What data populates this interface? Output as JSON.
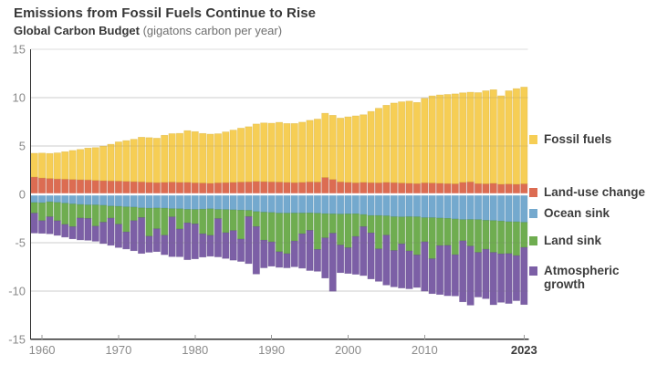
{
  "header": {
    "title": "Emissions from Fossil Fuels Continue to Rise",
    "subtitle_bold": "Global Carbon Budget",
    "subtitle_units": "(gigatons carbon per year)"
  },
  "colors": {
    "background": "#ffffff",
    "axis": "#2f2f2f",
    "grid": "#dedede",
    "grid_overlay": "rgba(110,110,110,0.16)",
    "tick": "#9a9a9a",
    "axis_label": "#8a8a8a",
    "axis_label_bold": "#3a3a3a",
    "zero_line": "#ffffff"
  },
  "legend": {
    "items": [
      {
        "label": "Fossil fuels",
        "lines": "Fossil fuels",
        "color": "#F6CE55"
      },
      {
        "label": "Land-use change",
        "lines": "Land-use change",
        "color": "#DC6C52"
      },
      {
        "label": "Ocean sink",
        "lines": "Ocean sink",
        "color": "#74A9CE"
      },
      {
        "label": "Land sink",
        "lines": "Land sink",
        "color": "#6FAD50"
      },
      {
        "label": "Atmospheric growth",
        "lines": "Atmospheric\ngrowth",
        "color": "#7C5FA6"
      }
    ]
  },
  "y_axis": {
    "ticks": [
      {
        "label": "15",
        "value": 15
      },
      {
        "label": "10",
        "value": 10
      },
      {
        "label": "5",
        "value": 5
      },
      {
        "label": "0",
        "value": 0
      },
      {
        "label": "-5",
        "value": -5
      },
      {
        "label": "-10",
        "value": -10
      },
      {
        "label": "-15",
        "value": -15
      }
    ]
  },
  "x_axis": {
    "ticks": [
      {
        "label": "1960",
        "year": 1960,
        "bold": false
      },
      {
        "label": "1970",
        "year": 1970,
        "bold": false
      },
      {
        "label": "1980",
        "year": 1980,
        "bold": false
      },
      {
        "label": "1990",
        "year": 1990,
        "bold": false
      },
      {
        "label": "2000",
        "year": 2000,
        "bold": false
      },
      {
        "label": "2010",
        "year": 2010,
        "bold": false
      },
      {
        "label": "2023",
        "year": 2023,
        "bold": true
      }
    ]
  },
  "chart_data": {
    "type": "bar",
    "subtype": "stacked-diverging",
    "title": "Emissions from Fossil Fuels Continue to Rise",
    "subtitle": "Global Carbon Budget (gigatons carbon per year)",
    "units": "gigatons carbon per year",
    "ylim": [
      -15,
      15
    ],
    "ytick_interval": 5,
    "grid": true,
    "legend_position": "right",
    "note": "Sources plotted upward, sinks plotted downward; sink values stored as positive magnitudes with direction -1.",
    "years": [
      1959,
      1960,
      1961,
      1962,
      1963,
      1964,
      1965,
      1966,
      1967,
      1968,
      1969,
      1970,
      1971,
      1972,
      1973,
      1974,
      1975,
      1976,
      1977,
      1978,
      1979,
      1980,
      1981,
      1982,
      1983,
      1984,
      1985,
      1986,
      1987,
      1988,
      1989,
      1990,
      1991,
      1992,
      1993,
      1994,
      1995,
      1996,
      1997,
      1998,
      1999,
      2000,
      2001,
      2002,
      2003,
      2004,
      2005,
      2006,
      2007,
      2008,
      2009,
      2010,
      2011,
      2012,
      2013,
      2014,
      2015,
      2016,
      2017,
      2018,
      2019,
      2020,
      2021,
      2022,
      2023
    ],
    "series": [
      {
        "name": "Land-use change",
        "color": "#DC6C52",
        "edge": "#bd5943",
        "direction": 1,
        "values": [
          1.8,
          1.7,
          1.65,
          1.6,
          1.58,
          1.55,
          1.52,
          1.5,
          1.45,
          1.42,
          1.4,
          1.38,
          1.35,
          1.32,
          1.3,
          1.25,
          1.22,
          1.25,
          1.28,
          1.25,
          1.25,
          1.2,
          1.18,
          1.15,
          1.2,
          1.22,
          1.25,
          1.28,
          1.3,
          1.35,
          1.32,
          1.3,
          1.28,
          1.25,
          1.22,
          1.25,
          1.3,
          1.28,
          1.75,
          1.55,
          1.3,
          1.25,
          1.2,
          1.25,
          1.22,
          1.2,
          1.25,
          1.22,
          1.18,
          1.15,
          1.12,
          1.2,
          1.18,
          1.15,
          1.12,
          1.1,
          1.25,
          1.3,
          1.12,
          1.1,
          1.15,
          1.05,
          1.08,
          1.05,
          1.1
        ]
      },
      {
        "name": "Fossil fuels",
        "color": "#F6CE55",
        "edge": "#d8b23a",
        "direction": 1,
        "values": [
          2.45,
          2.57,
          2.58,
          2.69,
          2.83,
          2.99,
          3.13,
          3.29,
          3.39,
          3.57,
          3.78,
          4.05,
          4.21,
          4.38,
          4.61,
          4.62,
          4.59,
          4.86,
          5.0,
          5.06,
          5.34,
          5.29,
          5.12,
          5.08,
          5.07,
          5.24,
          5.4,
          5.57,
          5.7,
          5.93,
          6.07,
          6.06,
          6.17,
          6.08,
          6.11,
          6.22,
          6.36,
          6.51,
          6.64,
          6.63,
          6.59,
          6.77,
          6.92,
          6.99,
          7.36,
          7.71,
          7.97,
          8.23,
          8.4,
          8.5,
          8.39,
          8.74,
          9.01,
          9.14,
          9.22,
          9.3,
          9.26,
          9.27,
          9.41,
          9.62,
          9.68,
          9.15,
          9.64,
          9.89,
          10.0
        ]
      },
      {
        "name": "Ocean sink",
        "color": "#74A9CE",
        "edge": "#5690ba",
        "direction": -1,
        "values": [
          0.85,
          0.88,
          0.78,
          0.84,
          0.92,
          1.0,
          1.06,
          1.1,
          1.1,
          1.14,
          1.22,
          1.25,
          1.3,
          1.33,
          1.41,
          1.44,
          1.42,
          1.44,
          1.49,
          1.5,
          1.56,
          1.57,
          1.54,
          1.5,
          1.57,
          1.58,
          1.61,
          1.64,
          1.66,
          1.79,
          1.85,
          1.88,
          1.95,
          1.95,
          1.94,
          1.94,
          1.93,
          1.96,
          2.01,
          2.03,
          2.05,
          2.03,
          2.02,
          2.1,
          2.2,
          2.2,
          2.23,
          2.32,
          2.34,
          2.32,
          2.33,
          2.42,
          2.42,
          2.46,
          2.49,
          2.56,
          2.62,
          2.61,
          2.62,
          2.69,
          2.72,
          2.77,
          2.84,
          2.85,
          2.9
        ]
      },
      {
        "name": "Land sink",
        "color": "#6FAD50",
        "edge": "#579343",
        "direction": -1,
        "values": [
          1.1,
          1.85,
          1.55,
          1.9,
          2.2,
          2.35,
          1.4,
          1.4,
          2.2,
          1.75,
          1.25,
          1.85,
          2.6,
          1.4,
          1.0,
          2.9,
          2.15,
          2.8,
          0.85,
          2.1,
          1.4,
          1.5,
          2.55,
          2.75,
          0.95,
          2.4,
          2.15,
          3.0,
          0.65,
          1.55,
          2.9,
          3.05,
          4.0,
          4.2,
          2.9,
          2.15,
          1.8,
          3.75,
          2.5,
          2.0,
          3.2,
          3.5,
          2.35,
          1.25,
          1.8,
          3.45,
          2.0,
          3.5,
          2.8,
          3.55,
          3.95,
          2.5,
          4.25,
          2.85,
          2.8,
          3.7,
          2.2,
          2.75,
          3.4,
          3.0,
          3.3,
          3.4,
          3.3,
          3.5,
          2.6
        ]
      },
      {
        "name": "Atmospheric growth",
        "color": "#7C5FA6",
        "edge": "#63498c",
        "direction": -1,
        "values": [
          2.05,
          1.3,
          1.75,
          1.5,
          1.3,
          1.25,
          2.25,
          2.25,
          1.55,
          2.2,
          2.8,
          2.4,
          1.75,
          3.1,
          3.7,
          1.65,
          2.35,
          2.0,
          4.1,
          2.85,
          3.8,
          3.6,
          2.4,
          2.15,
          3.95,
          2.65,
          3.05,
          2.3,
          4.85,
          4.9,
          2.85,
          2.5,
          1.6,
          1.45,
          2.65,
          3.55,
          4.15,
          2.25,
          4.15,
          6.0,
          2.85,
          2.65,
          3.9,
          5.05,
          4.75,
          3.35,
          5.15,
          3.75,
          4.55,
          3.9,
          3.35,
          5.1,
          3.6,
          5.05,
          5.2,
          4.25,
          6.3,
          6.1,
          4.6,
          5.1,
          5.4,
          5.0,
          5.15,
          4.65,
          5.9
        ]
      }
    ]
  }
}
